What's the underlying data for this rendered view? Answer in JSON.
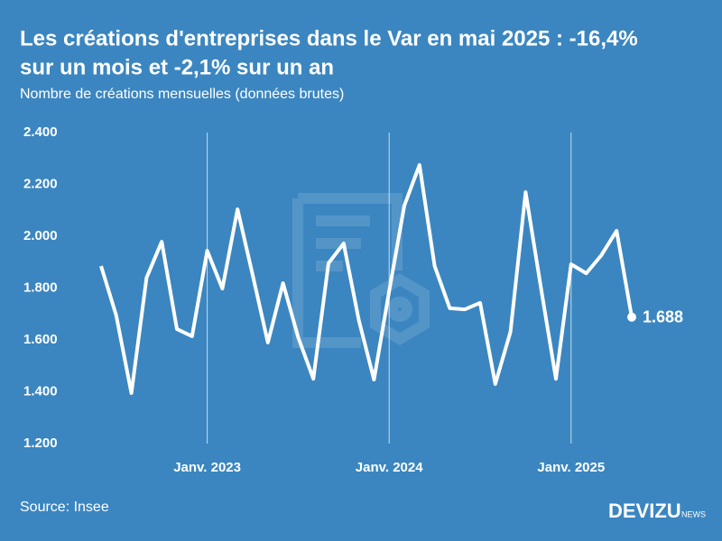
{
  "chart_data": {
    "type": "line",
    "title": [
      "Les créations d'entreprises dans le Var en mai 2025 : -16,4%",
      "sur un mois et -2,1% sur un an"
    ],
    "subtitle": "Nombre de créations mensuelles (données brutes)",
    "source": "Source: Insee",
    "brand": "DEVIZU",
    "brand_suffix": "NEWS",
    "categories": [
      null,
      null,
      null,
      null,
      null,
      null,
      null,
      "Janv. 2023",
      null,
      null,
      null,
      null,
      null,
      null,
      null,
      null,
      null,
      null,
      null,
      "Janv. 2024",
      null,
      null,
      null,
      null,
      null,
      null,
      null,
      null,
      null,
      null,
      null,
      "Janv. 2025",
      null,
      null,
      null,
      null
    ],
    "series": [
      {
        "name": "Créations",
        "color": "#ffffff",
        "values": [
          1885,
          1694,
          1395,
          1840,
          1979,
          1642,
          1614,
          1944,
          1798,
          2104,
          1850,
          1590,
          1819,
          1610,
          1450,
          1896,
          1972,
          1676,
          1447,
          1788,
          2118,
          2275,
          1885,
          1722,
          1718,
          1743,
          1430,
          1631,
          2170,
          1805,
          1450,
          1892,
          1857,
          1927,
          2021,
          1688
        ],
        "value_labels": [
          null,
          null,
          null,
          null,
          null,
          null,
          null,
          null,
          null,
          null,
          null,
          null,
          null,
          null,
          null,
          null,
          null,
          null,
          null,
          null,
          null,
          null,
          null,
          null,
          null,
          null,
          null,
          null,
          null,
          null,
          null,
          null,
          null,
          null,
          null,
          "1.688"
        ]
      }
    ],
    "ylim": [
      1200,
      2400
    ],
    "yticks": [
      {
        "value": 1200,
        "label": "1.200"
      },
      {
        "value": 1400,
        "label": "1.400"
      },
      {
        "value": 1600,
        "label": "1.600"
      },
      {
        "value": 1800,
        "label": "1.800"
      },
      {
        "value": 2000,
        "label": "2.000"
      },
      {
        "value": 2200,
        "label": "2.200"
      },
      {
        "value": 2400,
        "label": "2.400"
      }
    ]
  }
}
